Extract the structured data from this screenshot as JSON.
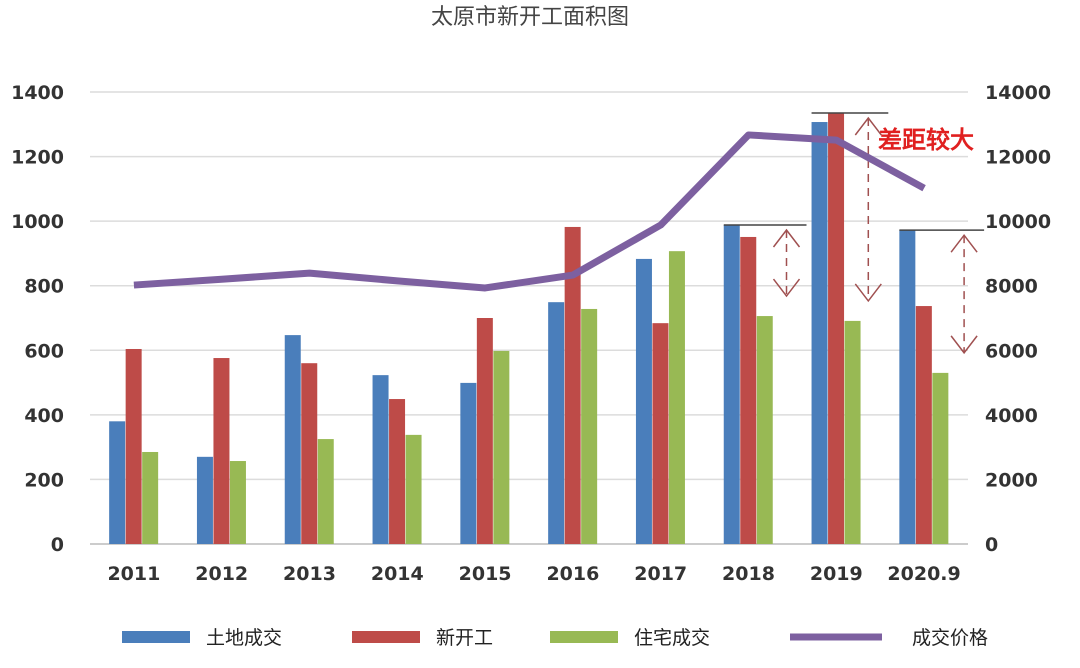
{
  "chart_data": {
    "type": "bar",
    "title": "太原市新开工面积图",
    "categories": [
      "2011",
      "2012",
      "2013",
      "2014",
      "2015",
      "2016",
      "2017",
      "2018",
      "2019",
      "2020.9"
    ],
    "ylim": [
      0,
      1400
    ],
    "y_ticks": [
      "0",
      "200",
      "400",
      "600",
      "800",
      "1000",
      "1200",
      "1400"
    ],
    "y2lim": [
      0,
      14000
    ],
    "y2_ticks": [
      "0",
      "2000",
      "4000",
      "6000",
      "8000",
      "10000",
      "12000",
      "14000"
    ],
    "grid": true,
    "legend_position": "bottom",
    "series": [
      {
        "name": "土地成交",
        "type": "bar",
        "axis": "left",
        "color": "#4a7ebb",
        "values": [
          380,
          270,
          647,
          523,
          499,
          749,
          883,
          988,
          1307,
          972
        ]
      },
      {
        "name": "新开工",
        "type": "bar",
        "axis": "left",
        "color": "#be4b48",
        "values": [
          604,
          576,
          560,
          449,
          700,
          982,
          684,
          951,
          1335,
          737
        ]
      },
      {
        "name": "住宅成交",
        "type": "bar",
        "axis": "left",
        "color": "#98b954",
        "values": [
          285,
          257,
          325,
          338,
          598,
          728,
          907,
          706,
          691,
          530
        ]
      },
      {
        "name": "成交价格",
        "type": "line",
        "axis": "right",
        "color": "#7d60a0",
        "values": [
          8020,
          8200,
          8390,
          8150,
          7930,
          8330,
          9880,
          12670,
          12510,
          11020
        ]
      }
    ],
    "annotations": [
      {
        "text": "差距较大",
        "color": "#e02020"
      }
    ]
  }
}
